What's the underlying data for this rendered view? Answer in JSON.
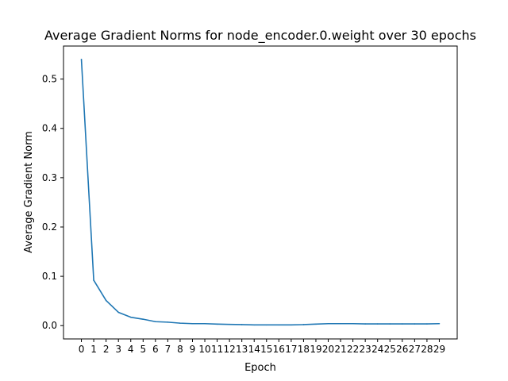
{
  "chart_data": {
    "type": "line",
    "title": "Average Gradient Norms for node_encoder.0.weight over 30 epochs",
    "xlabel": "Epoch",
    "ylabel": "Average Gradient Norm",
    "xlim": [
      -1.45,
      30.45
    ],
    "ylim": [
      -0.027,
      0.567
    ],
    "x_ticks": [
      "0",
      "1",
      "2",
      "3",
      "4",
      "5",
      "6",
      "7",
      "8",
      "9",
      "10",
      "11",
      "12",
      "13",
      "14",
      "15",
      "16",
      "17",
      "18",
      "19",
      "20",
      "21",
      "22",
      "23",
      "24",
      "25",
      "26",
      "27",
      "28",
      "29"
    ],
    "y_ticks": [
      "0.0",
      "0.1",
      "0.2",
      "0.3",
      "0.4",
      "0.5"
    ],
    "grid": false,
    "series": [
      {
        "color": "#1f77b4",
        "x": [
          0,
          1,
          2,
          3,
          4,
          5,
          6,
          7,
          8,
          9,
          10,
          11,
          12,
          13,
          14,
          15,
          16,
          17,
          18,
          19,
          20,
          21,
          22,
          23,
          24,
          25,
          26,
          27,
          28,
          29
        ],
        "values": [
          0.54,
          0.092,
          0.051,
          0.027,
          0.017,
          0.013,
          0.008,
          0.007,
          0.005,
          0.004,
          0.004,
          0.003,
          0.0025,
          0.002,
          0.0015,
          0.0015,
          0.0015,
          0.0015,
          0.002,
          0.003,
          0.004,
          0.004,
          0.004,
          0.0035,
          0.0035,
          0.0035,
          0.0035,
          0.0035,
          0.0035,
          0.004
        ]
      }
    ]
  }
}
